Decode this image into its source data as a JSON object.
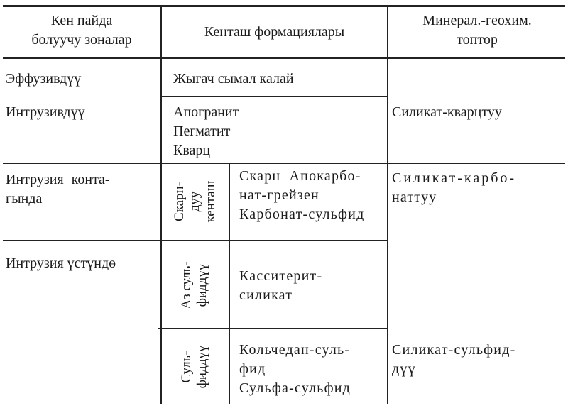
{
  "header": {
    "col1": [
      "Кен пайда",
      "болуучу зоналар"
    ],
    "col2": "Кенташ формациялары",
    "col3": [
      "Минерал.-геохим.",
      "топтор"
    ]
  },
  "rows": {
    "effusive": {
      "zone": "Эффузивдүү",
      "formation": "Жыгач сымал калай"
    },
    "intrusive": {
      "zone": "Интрузивдүү",
      "formations": [
        "Апогранит",
        "Пегматит",
        "Кварц"
      ],
      "group": "Силикат-кварцтуу"
    },
    "contact": {
      "zone": [
        "Интрузия конта-",
        "гында"
      ],
      "subtype": [
        "Скарн-",
        "дуу",
        "кенташ"
      ],
      "formations": [
        "Скарн Апокарбо-",
        "нат-грейзен",
        "Карбонат-сульфид"
      ],
      "group": [
        "Силикат-карбо-",
        "наттуу"
      ]
    },
    "above": {
      "zone": "Интрузия үстүндө",
      "low_sulfide": {
        "subtype": [
          "Аз суль-",
          "фиддүү"
        ],
        "formations": [
          "Касситерит-",
          "силикат"
        ]
      },
      "sulfide": {
        "subtype": [
          "Суль-",
          "фиддүү"
        ],
        "formations": [
          "Кольчедан-суль-",
          "фид",
          "Сульфа-сульфид"
        ],
        "group": [
          "Силикат-сульфид-",
          "дүү"
        ]
      }
    }
  }
}
